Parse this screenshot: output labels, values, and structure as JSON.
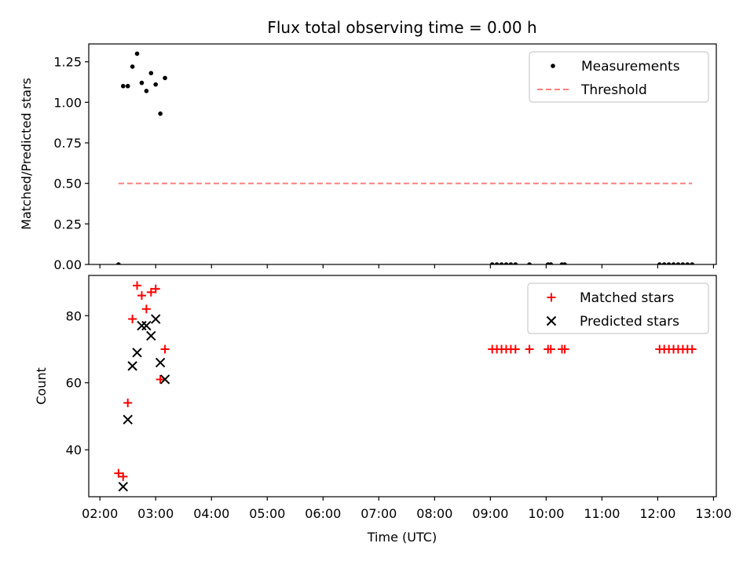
{
  "chart_data": [
    {
      "type": "scatter",
      "title": "Flux total observing time = 0.00 h",
      "xlabel": "",
      "ylabel": "Matched/Predicted stars",
      "xlim_hours": [
        1.8,
        13.05
      ],
      "ylim": [
        0,
        1.36
      ],
      "yticks": [
        0.0,
        0.25,
        0.5,
        0.75,
        1.0,
        1.25
      ],
      "ytick_labels": [
        "0.00",
        "0.25",
        "0.50",
        "0.75",
        "1.00",
        "1.25"
      ],
      "legend_position": "top-right",
      "series": [
        {
          "name": "Measurements",
          "marker": "dot",
          "color": "#000000",
          "x": [
            "02:20",
            "02:25",
            "02:30",
            "02:35",
            "02:40",
            "02:45",
            "02:50",
            "02:55",
            "03:00",
            "03:05",
            "03:10",
            "09:02",
            "09:07",
            "09:12",
            "09:17",
            "09:22",
            "09:27",
            "09:42",
            "10:02",
            "10:05",
            "10:17",
            "10:20",
            "12:02",
            "12:07",
            "12:12",
            "12:17",
            "12:22",
            "12:27",
            "12:32",
            "12:37"
          ],
          "y": [
            0,
            1.1,
            1.1,
            1.22,
            1.3,
            1.12,
            1.07,
            1.18,
            1.11,
            0.93,
            1.15,
            0,
            0,
            0,
            0,
            0,
            0,
            0,
            0,
            0,
            0,
            0,
            0,
            0,
            0,
            0,
            0,
            0,
            0,
            0
          ]
        },
        {
          "name": "Threshold",
          "marker": "dashed-line",
          "color": "#ff7f7f",
          "x": [
            "02:20",
            "12:37"
          ],
          "y": [
            0.5,
            0.5
          ]
        }
      ]
    },
    {
      "type": "scatter",
      "title": "",
      "xlabel": "Time (UTC)",
      "ylabel": "Count",
      "xlim_hours": [
        1.8,
        13.05
      ],
      "ylim": [
        26,
        92
      ],
      "yticks": [
        40,
        60,
        80
      ],
      "ytick_labels": [
        "40",
        "60",
        "80"
      ],
      "xticks_hours": [
        2,
        3,
        4,
        5,
        6,
        7,
        8,
        9,
        10,
        11,
        12,
        13
      ],
      "xtick_labels": [
        "02:00",
        "03:00",
        "04:00",
        "05:00",
        "06:00",
        "07:00",
        "08:00",
        "09:00",
        "10:00",
        "11:00",
        "12:00",
        "13:00"
      ],
      "legend_position": "top-right",
      "series": [
        {
          "name": "Matched stars",
          "marker": "plus",
          "color": "#ff0000",
          "x": [
            "02:20",
            "02:25",
            "02:30",
            "02:35",
            "02:40",
            "02:45",
            "02:50",
            "02:55",
            "03:00",
            "03:05",
            "03:10",
            "09:02",
            "09:07",
            "09:12",
            "09:17",
            "09:22",
            "09:27",
            "09:42",
            "10:02",
            "10:05",
            "10:17",
            "10:20",
            "12:02",
            "12:07",
            "12:12",
            "12:17",
            "12:22",
            "12:27",
            "12:32",
            "12:37"
          ],
          "y": [
            33,
            32,
            54,
            79,
            89,
            86,
            82,
            87,
            88,
            61,
            70,
            70,
            70,
            70,
            70,
            70,
            70,
            70,
            70,
            70,
            70,
            70,
            70,
            70,
            70,
            70,
            70,
            70,
            70,
            70
          ]
        },
        {
          "name": "Predicted stars",
          "marker": "x",
          "color": "#000000",
          "x": [
            "02:25",
            "02:30",
            "02:35",
            "02:40",
            "02:45",
            "02:50",
            "02:55",
            "03:00",
            "03:05",
            "03:10"
          ],
          "y": [
            29,
            49,
            65,
            69,
            77,
            77,
            74,
            79,
            66,
            61
          ]
        }
      ]
    }
  ]
}
